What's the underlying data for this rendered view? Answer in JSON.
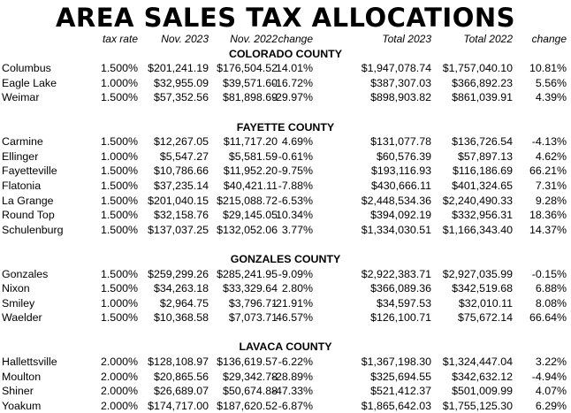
{
  "title": "AREA SALES TAX ALLOCATIONS",
  "headers": [
    "tax rate",
    "Nov. 2023",
    "Nov. 2022",
    "change",
    "Total 2023",
    "Total 2022",
    "change"
  ],
  "blocks": [
    {
      "county": "COLORADO COUNTY",
      "rows": [
        [
          "Columbus",
          "1.500%",
          "$201,241.19",
          "$176,504.52",
          "14.01%",
          "$1,947,078.74",
          "$1,757,040.10",
          "10.81%"
        ],
        [
          "Eagle Lake",
          "1.000%",
          "$32,955.09",
          "$39,571.60",
          "-16.72%",
          "$387,307.03",
          "$366,892.23",
          "5.56%"
        ],
        [
          "Weimar",
          "1.500%",
          "$57,352.56",
          "$81,898.69",
          "-29.97%",
          "$898,903.82",
          "$861,039.91",
          "4.39%"
        ]
      ]
    },
    {
      "county": "FAYETTE COUNTY",
      "rows": [
        [
          "Carmine",
          "1.500%",
          "$12,267.05",
          "$11,717.20",
          "4.69%",
          "$131,077.78",
          "$136,726.54",
          "-4.13%"
        ],
        [
          "Ellinger",
          "1.000%",
          "$5,547.27",
          "$5,581.59",
          "-0.61%",
          "$60,576.39",
          "$57,897.13",
          "4.62%"
        ],
        [
          "Fayetteville",
          "1.500%",
          "$10,786.66",
          "$11,952.20",
          "-9.75%",
          "$193,116.93",
          "$116,186.69",
          "66.21%"
        ],
        [
          "Flatonia",
          "1.500%",
          "$37,235.14",
          "$40,421.11",
          "-7.88%",
          "$430,666.11",
          "$401,324.65",
          "7.31%"
        ],
        [
          "La Grange",
          "1.500%",
          "$201,040.15",
          "$215,088.72",
          "-6.53%",
          "$2,448,534.36",
          "$2,240,490.33",
          "9.28%"
        ],
        [
          "Round Top",
          "1.500%",
          "$32,158.76",
          "$29,145.05",
          "10.34%",
          "$394,092.19",
          "$332,956.31",
          "18.36%"
        ],
        [
          "Schulenburg",
          "1.500%",
          "$137,037.25",
          "$132,052.06",
          "3.77%",
          "$1,334,030.51",
          "$1,166,343.40",
          "14.37%"
        ]
      ]
    },
    {
      "county": "GONZALES COUNTY",
      "rows": [
        [
          "Gonzales",
          "1.500%",
          "$259,299.26",
          "$285,241.95",
          "-9.09%",
          "$2,922,383.71",
          "$2,927,035.99",
          "-0.15%"
        ],
        [
          "Nixon",
          "1.500%",
          "$34,263.18",
          "$33,329.64",
          "2.80%",
          "$366,089.36",
          "$342,519.68",
          "6.88%"
        ],
        [
          "Smiley",
          "1.000%",
          "$2,964.75",
          "$3,796.71",
          "-21.91%",
          "$34,597.53",
          "$32,010.11",
          "8.08%"
        ],
        [
          "Waelder",
          "1.500%",
          "$10,368.58",
          "$7,073.71",
          "46.57%",
          "$126,100.71",
          "$75,672.14",
          "66.64%"
        ]
      ]
    },
    {
      "county": "LAVACA COUNTY",
      "rows": [
        [
          "Hallettsville",
          "2.000%",
          "$128,108.97",
          "$136,619.57",
          "-6.22%",
          "$1,367,198.30",
          "$1,324,447.04",
          "3.22%"
        ],
        [
          "Moulton",
          "2.000%",
          "$20,865.56",
          "$29,342.78",
          "-28.89%",
          "$325,694.55",
          "$342,632.12",
          "-4.94%"
        ],
        [
          "Shiner",
          "2.000%",
          "$26,689.07",
          "$50,674.88",
          "-47.33%",
          "$521,412.37",
          "$501,009.99",
          "4.07%"
        ],
        [
          "Yoakum",
          "2.000%",
          "$174,717.00",
          "$187,620.52",
          "-6.87%",
          "$1,865,642.03",
          "$1,755,125.30",
          "6.29%"
        ]
      ]
    }
  ]
}
